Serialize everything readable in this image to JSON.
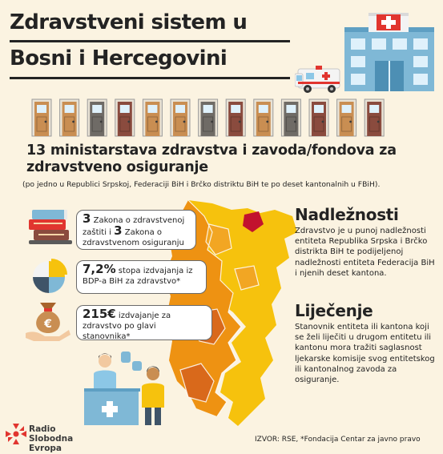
{
  "title": {
    "line1": "Zdravstveni sistem u",
    "line2": "Bosni i Hercegovini"
  },
  "ministries": {
    "heading": "13 ministarstava zdravstva i zavoda/fondova za zdravstveno osiguranje",
    "note": "(po jedno u Republici Srpskoj, Federaciji BiH i Brčko distriktu BiH te po deset kantonalnih u FBiH)."
  },
  "facts": {
    "laws": {
      "n1": "3",
      "t1": " Zakona o zdravstvenoj zaštiti i ",
      "n2": "3",
      "t2": " Zakona o zdravstvenom osiguranju"
    },
    "gdp": {
      "value": "7,2%",
      "text": " stopa izdvajanja iz BDP-a BiH za zdravstvo*"
    },
    "eur": {
      "value": "215€",
      "text": " izdvajanje za zdravstvo po glavi stanovnika*"
    }
  },
  "nadleznosti": {
    "title": "Nadležnosti",
    "text": "Zdravstvo je u punoj nadležnosti entiteta Republika Srpska i Brčko distrikta BiH te podijeljenoj nadležnosti entiteta Federacija BiH i njenih deset kantona."
  },
  "lijecenje": {
    "title": "Liječenje",
    "text": "Stanovnik entiteta ili kantona koji se želi liječiti u drugom entitetu ili kantonu mora tražiti saglasnost ljekarske komisije svog entitetskog ili kantonalnog zavoda za osiguranje."
  },
  "logo": {
    "line1": "Radio Slobodna",
    "line2": "Evropa"
  },
  "source": "IZVOR:  RSE, *Fondacija Centar za javno pravo",
  "colors": {
    "background": "#fbf3e1",
    "map_yellow": "#f6c20d",
    "map_orange": "#ee9212",
    "map_dark_orange": "#d9691b",
    "brcko_red": "#c2122e",
    "accent_red": "#e1352f",
    "door_colors": [
      "#c98e52",
      "#6f6b66",
      "#8a4b3e"
    ]
  },
  "icons": [
    "hospital-icon",
    "ambulance-icon",
    "door-icon",
    "law-books-icon",
    "pie-chart-icon",
    "money-bag-icon",
    "doctor-patient-icon",
    "rse-logo-icon"
  ]
}
